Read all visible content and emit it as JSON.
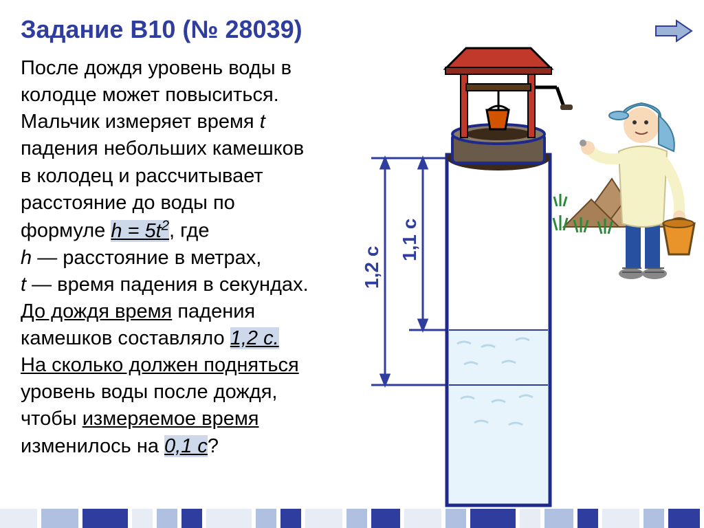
{
  "title": "Задание В10 (№ 28039)",
  "problem": {
    "line1": "После дождя уровень воды в",
    "line2": "колодце может повыситься.",
    "line3a": "Мальчик измеряет время ",
    "var_t": "t",
    "line4": "падения небольших камешков",
    "line5": "в колодец и рассчитывает",
    "line6": "расстояние до воды по",
    "line7a": "формуле    ",
    "formula": "h = 5t",
    "formula_sup": "2",
    "line7b": ", где",
    "line8a": "h",
    "line8b": " — расстояние в метрах,",
    "line9a": "t",
    "line9b": " — время падения в секундах.",
    "line10": "До дождя время",
    "line10b": " падения",
    "line11a": "камешков составляло ",
    "val1": "1,2 с.",
    "line12": "На сколько должен подняться",
    "line13": "уровень воды после дождя,",
    "line14a": "чтобы ",
    "line14b": "измеряемое время",
    "line15a": "изменилось на ",
    "val2": "0,1 с",
    "line15b": "?"
  },
  "diagram": {
    "label_left": "1,2 с",
    "label_right": "1,1 с",
    "colors": {
      "well_outline": "#1e2a8a",
      "well_fill": "#2f3e9e",
      "roof": "#c0392b",
      "roof_dark": "#8e2a1f",
      "bucket": "#d35400",
      "ground_dark": "#3b2a1a",
      "water": "#e8f4fb",
      "water_streak": "#b8d8e8",
      "boy_skin": "#f8d9b8",
      "boy_shirt": "#f5f2c8",
      "boy_cap": "#7fb8d8",
      "boy_pants": "#2850a0",
      "bucket2_fill": "#e8942a",
      "bucket2_stroke": "#9a5c12",
      "grass": "#2a8a3a",
      "dim_color": "#2f3e9e",
      "label_color": "#2f3e9e"
    }
  },
  "arrow": {
    "fill": "#9db4d6",
    "stroke": "#2f3e9e"
  },
  "footer_stripes": [
    {
      "w": 60,
      "c": "#e8edf5"
    },
    {
      "w": 60,
      "c": "#b0c0e0"
    },
    {
      "w": 72,
      "c": "#2f3e9e"
    },
    {
      "w": 36,
      "c": "#e8edf5"
    },
    {
      "w": 36,
      "c": "#b0c0e0"
    },
    {
      "w": 36,
      "c": "#2f3e9e"
    },
    {
      "w": 72,
      "c": "#e8edf5"
    },
    {
      "w": 36,
      "c": "#b0c0e0"
    },
    {
      "w": 36,
      "c": "#2f3e9e"
    },
    {
      "w": 60,
      "c": "#e8edf5"
    },
    {
      "w": 36,
      "c": "#b0c0e0"
    },
    {
      "w": 48,
      "c": "#2f3e9e"
    },
    {
      "w": 60,
      "c": "#e8edf5"
    },
    {
      "w": 36,
      "c": "#b0c0e0"
    },
    {
      "w": 72,
      "c": "#2f3e9e"
    },
    {
      "w": 36,
      "c": "#e8edf5"
    },
    {
      "w": 48,
      "c": "#b0c0e0"
    },
    {
      "w": 36,
      "c": "#2f3e9e"
    },
    {
      "w": 60,
      "c": "#e8edf5"
    },
    {
      "w": 36,
      "c": "#b0c0e0"
    },
    {
      "w": 52,
      "c": "#2f3e9e"
    }
  ]
}
